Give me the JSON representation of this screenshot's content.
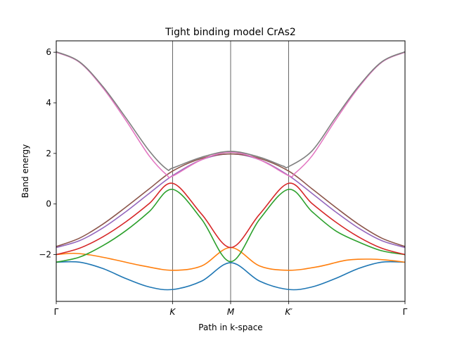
{
  "chart_data": {
    "type": "line",
    "title": "Tight binding model CrAs2",
    "xlabel": "Path in k-space",
    "ylabel": "Band energy",
    "xlim": [
      0,
      3
    ],
    "ylim": [
      -3.85,
      6.45
    ],
    "grid": false,
    "legend": "none",
    "x_ticks": [
      {
        "value": 0,
        "label": "Γ"
      },
      {
        "value": 1,
        "label": "K"
      },
      {
        "value": 1.5,
        "label": "M"
      },
      {
        "value": 2,
        "label": "K′"
      },
      {
        "value": 3,
        "label": "Γ"
      }
    ],
    "y_ticks": [
      {
        "value": -2,
        "label": "−2"
      },
      {
        "value": 0,
        "label": "0"
      },
      {
        "value": 2,
        "label": "2"
      },
      {
        "value": 4,
        "label": "4"
      },
      {
        "value": 6,
        "label": "6"
      }
    ],
    "vlines": [
      1,
      1.5,
      2
    ],
    "series": [
      {
        "color": "#1f77b4",
        "x": [
          0,
          0.2,
          0.4,
          0.6,
          0.8,
          1.0,
          1.25,
          1.5,
          1.75,
          2.0,
          2.2,
          2.4,
          2.6,
          2.8,
          3.0
        ],
        "values": [
          -2.3,
          -2.3,
          -2.55,
          -2.95,
          -3.28,
          -3.38,
          -3.05,
          -2.32,
          -3.05,
          -3.38,
          -3.28,
          -2.95,
          -2.55,
          -2.3,
          -2.3
        ]
      },
      {
        "color": "#ff7f0e",
        "x": [
          0,
          0.15,
          0.3,
          0.5,
          0.75,
          1.0,
          1.25,
          1.5,
          1.75,
          2.0,
          2.25,
          2.5,
          2.7,
          2.85,
          3.0
        ],
        "values": [
          -2.0,
          -1.95,
          -2.02,
          -2.2,
          -2.45,
          -2.62,
          -2.45,
          -1.72,
          -2.45,
          -2.62,
          -2.48,
          -2.22,
          -2.18,
          -2.22,
          -2.3
        ]
      },
      {
        "color": "#2ca02c",
        "x": [
          0,
          0.2,
          0.4,
          0.6,
          0.8,
          1.0,
          1.25,
          1.5,
          1.75,
          2.0,
          2.2,
          2.4,
          2.6,
          2.8,
          3.0
        ],
        "values": [
          -2.3,
          -2.1,
          -1.65,
          -1.05,
          -0.3,
          0.58,
          -0.6,
          -2.28,
          -0.6,
          0.58,
          -0.3,
          -1.05,
          -1.5,
          -1.85,
          -2.0
        ]
      },
      {
        "color": "#d62728",
        "x": [
          0,
          0.2,
          0.4,
          0.6,
          0.8,
          1.0,
          1.25,
          1.5,
          1.75,
          2.0,
          2.2,
          2.4,
          2.6,
          2.8,
          3.0
        ],
        "values": [
          -2.0,
          -1.75,
          -1.3,
          -0.7,
          0.02,
          0.82,
          -0.4,
          -1.72,
          -0.4,
          0.82,
          0.02,
          -0.7,
          -1.3,
          -1.75,
          -2.0
        ]
      },
      {
        "color": "#9467bd",
        "x": [
          0,
          0.2,
          0.4,
          0.6,
          0.8,
          1.0,
          1.25,
          1.5,
          1.75,
          2.0,
          2.2,
          2.4,
          2.6,
          2.8,
          3.0
        ],
        "values": [
          -1.72,
          -1.45,
          -0.95,
          -0.3,
          0.42,
          1.12,
          1.75,
          1.98,
          1.75,
          1.12,
          0.42,
          -0.3,
          -0.95,
          -1.45,
          -1.72
        ]
      },
      {
        "color": "#8c564b",
        "x": [
          0,
          0.2,
          0.4,
          0.6,
          0.8,
          1.0,
          1.25,
          1.5,
          1.75,
          2.0,
          2.2,
          2.4,
          2.6,
          2.8,
          3.0
        ],
        "values": [
          -1.68,
          -1.35,
          -0.8,
          -0.12,
          0.6,
          1.3,
          1.8,
          1.98,
          1.8,
          1.3,
          0.6,
          -0.12,
          -0.8,
          -1.35,
          -1.68
        ]
      },
      {
        "color": "#e377c2",
        "x": [
          0,
          0.2,
          0.4,
          0.6,
          0.8,
          0.95,
          1.0,
          1.25,
          1.5,
          1.75,
          2.0,
          2.05,
          2.2,
          2.4,
          2.6,
          2.8,
          3.0
        ],
        "values": [
          6.0,
          5.6,
          4.6,
          3.3,
          1.9,
          1.15,
          1.1,
          1.75,
          2.05,
          1.75,
          1.12,
          1.2,
          1.9,
          3.3,
          4.6,
          5.6,
          6.0
        ]
      },
      {
        "color": "#7f7f7f",
        "x": [
          0,
          0.2,
          0.4,
          0.6,
          0.8,
          0.95,
          1.0,
          1.25,
          1.5,
          1.75,
          1.95,
          2.0,
          2.2,
          2.4,
          2.6,
          2.8,
          3.0
        ],
        "values": [
          6.02,
          5.62,
          4.65,
          3.4,
          2.1,
          1.38,
          1.42,
          1.85,
          2.08,
          1.85,
          1.5,
          1.48,
          2.1,
          3.4,
          4.65,
          5.62,
          6.02
        ]
      }
    ]
  }
}
